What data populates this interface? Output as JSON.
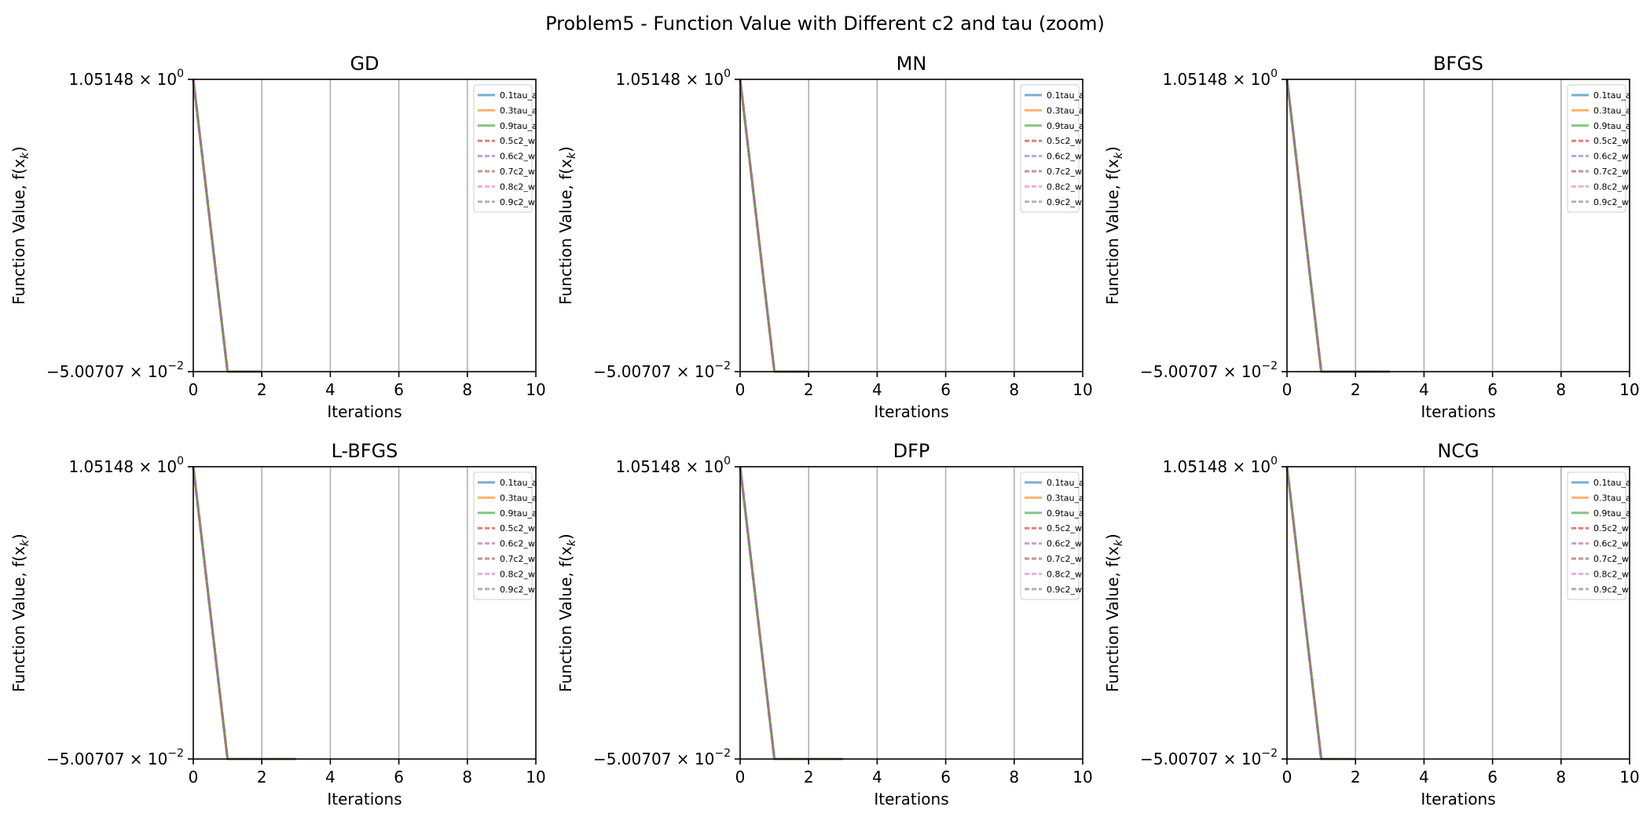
{
  "figure": {
    "title": "Problem5 - Function Value with Different c2 and tau (zoom)"
  },
  "legend_entries": [
    {
      "name": "0.1tau_a",
      "color": "#1f77b4",
      "dash": "solid"
    },
    {
      "name": "0.3tau_a",
      "color": "#ff7f0e",
      "dash": "solid"
    },
    {
      "name": "0.9tau_a",
      "color": "#2ca02c",
      "dash": "solid"
    },
    {
      "name": "0.5c2_w",
      "color": "#d62728",
      "dash": "dashed"
    },
    {
      "name": "0.6c2_w",
      "color": "#9467bd",
      "dash": "dashed"
    },
    {
      "name": "0.7c2_w",
      "color": "#8c564b",
      "dash": "dashed"
    },
    {
      "name": "0.8c2_w",
      "color": "#e377c2",
      "dash": "dashed"
    },
    {
      "name": "0.9c2_w",
      "color": "#7f7f7f",
      "dash": "dashed"
    }
  ],
  "chart_data": [
    {
      "type": "line",
      "title": "GD",
      "xlabel": "Iterations",
      "ylabel": "Function Value, f(x",
      "ylabel_sub": "k",
      "ylabel_end": ")",
      "xlim": [
        0,
        10
      ],
      "ylim": [
        -0.0500707,
        1.05148
      ],
      "yscale": "symlog",
      "xticks": [
        0,
        2,
        4,
        6,
        8,
        10
      ],
      "yticks": [
        {
          "value": 1.05148,
          "mantissa": "1.05148",
          "base": "10",
          "exp": "0"
        },
        {
          "value": -0.0500707,
          "mantissa": "−5.00707",
          "base": "10",
          "exp": "−2"
        }
      ],
      "grid": "x",
      "legend": "upper right",
      "series": [
        {
          "name": "0.1tau_a",
          "x": [
            0,
            1,
            2
          ],
          "y": [
            1.05148,
            -0.0500707,
            -0.0500707
          ]
        },
        {
          "name": "0.3tau_a",
          "x": [
            0,
            1,
            2
          ],
          "y": [
            1.05148,
            -0.0500707,
            -0.0500707
          ]
        },
        {
          "name": "0.9tau_a",
          "x": [
            0,
            1,
            2
          ],
          "y": [
            1.05148,
            -0.0500707,
            -0.0500707
          ]
        },
        {
          "name": "0.5c2_w",
          "x": [
            0,
            1,
            2
          ],
          "y": [
            1.05148,
            -0.0500707,
            -0.0500707
          ]
        },
        {
          "name": "0.6c2_w",
          "x": [
            0,
            1,
            2
          ],
          "y": [
            1.05148,
            -0.0500707,
            -0.0500707
          ]
        },
        {
          "name": "0.7c2_w",
          "x": [
            0,
            1,
            2
          ],
          "y": [
            1.05148,
            -0.0500707,
            -0.0500707
          ]
        },
        {
          "name": "0.8c2_w",
          "x": [
            0,
            1,
            2
          ],
          "y": [
            1.05148,
            -0.0500707,
            -0.0500707
          ]
        },
        {
          "name": "0.9c2_w",
          "x": [
            0,
            1,
            2
          ],
          "y": [
            1.05148,
            -0.0500707,
            -0.0500707
          ]
        }
      ]
    },
    {
      "type": "line",
      "title": "MN",
      "xlabel": "Iterations",
      "ylabel": "Function Value, f(x",
      "ylabel_sub": "k",
      "ylabel_end": ")",
      "xlim": [
        0,
        10
      ],
      "ylim": [
        -0.0500707,
        1.05148
      ],
      "yscale": "symlog",
      "xticks": [
        0,
        2,
        4,
        6,
        8,
        10
      ],
      "yticks": [
        {
          "value": 1.05148,
          "mantissa": "1.05148",
          "base": "10",
          "exp": "0"
        },
        {
          "value": -0.0500707,
          "mantissa": "−5.00707",
          "base": "10",
          "exp": "−2"
        }
      ],
      "grid": "x",
      "legend": "upper right",
      "series": [
        {
          "name": "0.1tau_a",
          "x": [
            0,
            1,
            2
          ],
          "y": [
            1.05148,
            -0.0500707,
            -0.0500707
          ]
        },
        {
          "name": "0.3tau_a",
          "x": [
            0,
            1,
            2
          ],
          "y": [
            1.05148,
            -0.0500707,
            -0.0500707
          ]
        },
        {
          "name": "0.9tau_a",
          "x": [
            0,
            1,
            2
          ],
          "y": [
            1.05148,
            -0.0500707,
            -0.0500707
          ]
        },
        {
          "name": "0.5c2_w",
          "x": [
            0,
            1,
            2
          ],
          "y": [
            1.05148,
            -0.0500707,
            -0.0500707
          ]
        },
        {
          "name": "0.6c2_w",
          "x": [
            0,
            1,
            2
          ],
          "y": [
            1.05148,
            -0.0500707,
            -0.0500707
          ]
        },
        {
          "name": "0.7c2_w",
          "x": [
            0,
            1,
            2
          ],
          "y": [
            1.05148,
            -0.0500707,
            -0.0500707
          ]
        },
        {
          "name": "0.8c2_w",
          "x": [
            0,
            1,
            2
          ],
          "y": [
            1.05148,
            -0.0500707,
            -0.0500707
          ]
        },
        {
          "name": "0.9c2_w",
          "x": [
            0,
            1,
            2
          ],
          "y": [
            1.05148,
            -0.0500707,
            -0.0500707
          ]
        }
      ]
    },
    {
      "type": "line",
      "title": "BFGS",
      "xlabel": "Iterations",
      "ylabel": "Function Value, f(x",
      "ylabel_sub": "k",
      "ylabel_end": ")",
      "xlim": [
        0,
        10
      ],
      "ylim": [
        -0.0500707,
        1.05148
      ],
      "yscale": "symlog",
      "xticks": [
        0,
        2,
        4,
        6,
        8,
        10
      ],
      "yticks": [
        {
          "value": 1.05148,
          "mantissa": "1.05148",
          "base": "10",
          "exp": "0"
        },
        {
          "value": -0.0500707,
          "mantissa": "−5.00707",
          "base": "10",
          "exp": "−2"
        }
      ],
      "grid": "x",
      "legend": "upper right",
      "series": [
        {
          "name": "0.1tau_a",
          "x": [
            0,
            1,
            2,
            3
          ],
          "y": [
            1.05148,
            -0.0500707,
            -0.0500707,
            -0.0500707
          ]
        },
        {
          "name": "0.3tau_a",
          "x": [
            0,
            1,
            2,
            3
          ],
          "y": [
            1.05148,
            -0.0500707,
            -0.0500707,
            -0.0500707
          ]
        },
        {
          "name": "0.9tau_a",
          "x": [
            0,
            1,
            2,
            3
          ],
          "y": [
            1.05148,
            -0.0500707,
            -0.0500707,
            -0.0500707
          ]
        },
        {
          "name": "0.5c2_w",
          "x": [
            0,
            1,
            2,
            3
          ],
          "y": [
            1.05148,
            -0.0500707,
            -0.0500707,
            -0.0500707
          ]
        },
        {
          "name": "0.6c2_w",
          "x": [
            0,
            1,
            2,
            3
          ],
          "y": [
            1.05148,
            -0.0500707,
            -0.0500707,
            -0.0500707
          ]
        },
        {
          "name": "0.7c2_w",
          "x": [
            0,
            1,
            2,
            3
          ],
          "y": [
            1.05148,
            -0.0500707,
            -0.0500707,
            -0.0500707
          ]
        },
        {
          "name": "0.8c2_w",
          "x": [
            0,
            1,
            2,
            3
          ],
          "y": [
            1.05148,
            -0.0500707,
            -0.0500707,
            -0.0500707
          ]
        },
        {
          "name": "0.9c2_w",
          "x": [
            0,
            1,
            2,
            3
          ],
          "y": [
            1.05148,
            -0.0500707,
            -0.0500707,
            -0.0500707
          ]
        }
      ]
    },
    {
      "type": "line",
      "title": "L-BFGS",
      "xlabel": "Iterations",
      "ylabel": "Function Value, f(x",
      "ylabel_sub": "k",
      "ylabel_end": ")",
      "xlim": [
        0,
        10
      ],
      "ylim": [
        -0.0500707,
        1.05148
      ],
      "yscale": "symlog",
      "xticks": [
        0,
        2,
        4,
        6,
        8,
        10
      ],
      "yticks": [
        {
          "value": 1.05148,
          "mantissa": "1.05148",
          "base": "10",
          "exp": "0"
        },
        {
          "value": -0.0500707,
          "mantissa": "−5.00707",
          "base": "10",
          "exp": "−2"
        }
      ],
      "grid": "x",
      "legend": "upper right",
      "series": [
        {
          "name": "0.1tau_a",
          "x": [
            0,
            1,
            2,
            3
          ],
          "y": [
            1.05148,
            -0.0500707,
            -0.0500707,
            -0.0500707
          ]
        },
        {
          "name": "0.3tau_a",
          "x": [
            0,
            1,
            2,
            3
          ],
          "y": [
            1.05148,
            -0.0500707,
            -0.0500707,
            -0.0500707
          ]
        },
        {
          "name": "0.9tau_a",
          "x": [
            0,
            1,
            2,
            3
          ],
          "y": [
            1.05148,
            -0.0500707,
            -0.0500707,
            -0.0500707
          ]
        },
        {
          "name": "0.5c2_w",
          "x": [
            0,
            1,
            2,
            3
          ],
          "y": [
            1.05148,
            -0.0500707,
            -0.0500707,
            -0.0500707
          ]
        },
        {
          "name": "0.6c2_w",
          "x": [
            0,
            1,
            2,
            3
          ],
          "y": [
            1.05148,
            -0.0500707,
            -0.0500707,
            -0.0500707
          ]
        },
        {
          "name": "0.7c2_w",
          "x": [
            0,
            1,
            2,
            3
          ],
          "y": [
            1.05148,
            -0.0500707,
            -0.0500707,
            -0.0500707
          ]
        },
        {
          "name": "0.8c2_w",
          "x": [
            0,
            1,
            2,
            3
          ],
          "y": [
            1.05148,
            -0.0500707,
            -0.0500707,
            -0.0500707
          ]
        },
        {
          "name": "0.9c2_w",
          "x": [
            0,
            1,
            2,
            3
          ],
          "y": [
            1.05148,
            -0.0500707,
            -0.0500707,
            -0.0500707
          ]
        }
      ]
    },
    {
      "type": "line",
      "title": "DFP",
      "xlabel": "Iterations",
      "ylabel": "Function Value, f(x",
      "ylabel_sub": "k",
      "ylabel_end": ")",
      "xlim": [
        0,
        10
      ],
      "ylim": [
        -0.0500707,
        1.05148
      ],
      "yscale": "symlog",
      "xticks": [
        0,
        2,
        4,
        6,
        8,
        10
      ],
      "yticks": [
        {
          "value": 1.05148,
          "mantissa": "1.05148",
          "base": "10",
          "exp": "0"
        },
        {
          "value": -0.0500707,
          "mantissa": "−5.00707",
          "base": "10",
          "exp": "−2"
        }
      ],
      "grid": "x",
      "legend": "upper right",
      "series": [
        {
          "name": "0.1tau_a",
          "x": [
            0,
            1,
            2,
            3
          ],
          "y": [
            1.05148,
            -0.0500707,
            -0.0500707,
            -0.0500707
          ]
        },
        {
          "name": "0.3tau_a",
          "x": [
            0,
            1,
            2,
            3
          ],
          "y": [
            1.05148,
            -0.0500707,
            -0.0500707,
            -0.0500707
          ]
        },
        {
          "name": "0.9tau_a",
          "x": [
            0,
            1,
            2,
            3
          ],
          "y": [
            1.05148,
            -0.0500707,
            -0.0500707,
            -0.0500707
          ]
        },
        {
          "name": "0.5c2_w",
          "x": [
            0,
            1,
            2,
            3
          ],
          "y": [
            1.05148,
            -0.0500707,
            -0.0500707,
            -0.0500707
          ]
        },
        {
          "name": "0.6c2_w",
          "x": [
            0,
            1,
            2,
            3
          ],
          "y": [
            1.05148,
            -0.0500707,
            -0.0500707,
            -0.0500707
          ]
        },
        {
          "name": "0.7c2_w",
          "x": [
            0,
            1,
            2,
            3
          ],
          "y": [
            1.05148,
            -0.0500707,
            -0.0500707,
            -0.0500707
          ]
        },
        {
          "name": "0.8c2_w",
          "x": [
            0,
            1,
            2,
            3
          ],
          "y": [
            1.05148,
            -0.0500707,
            -0.0500707,
            -0.0500707
          ]
        },
        {
          "name": "0.9c2_w",
          "x": [
            0,
            1,
            2,
            3
          ],
          "y": [
            1.05148,
            -0.0500707,
            -0.0500707,
            -0.0500707
          ]
        }
      ]
    },
    {
      "type": "line",
      "title": "NCG",
      "xlabel": "Iterations",
      "ylabel": "Function Value, f(x",
      "ylabel_sub": "k",
      "ylabel_end": ")",
      "xlim": [
        0,
        10
      ],
      "ylim": [
        -0.0500707,
        1.05148
      ],
      "yscale": "symlog",
      "xticks": [
        0,
        2,
        4,
        6,
        8,
        10
      ],
      "yticks": [
        {
          "value": 1.05148,
          "mantissa": "1.05148",
          "base": "10",
          "exp": "0"
        },
        {
          "value": -0.0500707,
          "mantissa": "−5.00707",
          "base": "10",
          "exp": "−2"
        }
      ],
      "grid": "x",
      "legend": "upper right",
      "series": [
        {
          "name": "0.1tau_a",
          "x": [
            0,
            1,
            2
          ],
          "y": [
            1.05148,
            -0.0500707,
            -0.0500707
          ]
        },
        {
          "name": "0.3tau_a",
          "x": [
            0,
            1,
            2
          ],
          "y": [
            1.05148,
            -0.0500707,
            -0.0500707
          ]
        },
        {
          "name": "0.9tau_a",
          "x": [
            0,
            1,
            2
          ],
          "y": [
            1.05148,
            -0.0500707,
            -0.0500707
          ]
        },
        {
          "name": "0.5c2_w",
          "x": [
            0,
            1,
            2
          ],
          "y": [
            1.05148,
            -0.0500707,
            -0.0500707
          ]
        },
        {
          "name": "0.6c2_w",
          "x": [
            0,
            1,
            2
          ],
          "y": [
            1.05148,
            -0.0500707,
            -0.0500707
          ]
        },
        {
          "name": "0.7c2_w",
          "x": [
            0,
            1,
            2
          ],
          "y": [
            1.05148,
            -0.0500707,
            -0.0500707
          ]
        },
        {
          "name": "0.8c2_w",
          "x": [
            0,
            1,
            2
          ],
          "y": [
            1.05148,
            -0.0500707,
            -0.0500707
          ]
        },
        {
          "name": "0.9c2_w",
          "x": [
            0,
            1,
            2
          ],
          "y": [
            1.05148,
            -0.0500707,
            -0.0500707
          ]
        }
      ]
    }
  ]
}
